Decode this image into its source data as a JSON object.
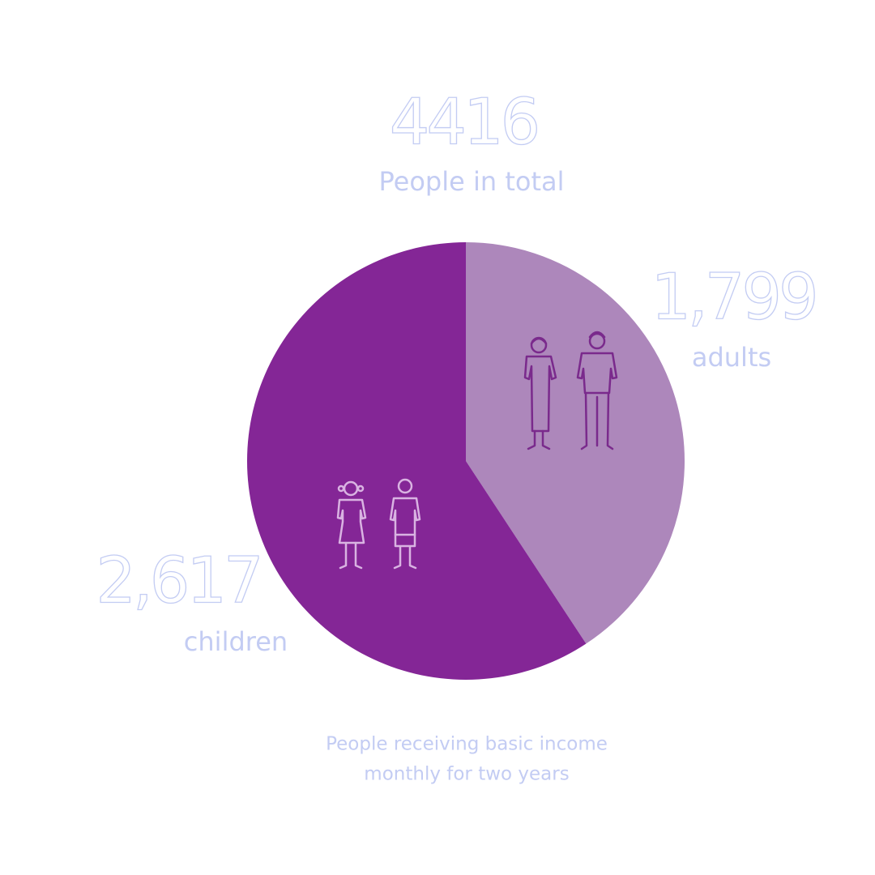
{
  "chart_data": {
    "type": "pie",
    "total": 4416,
    "total_label": "People in total",
    "categories": [
      "adults",
      "children"
    ],
    "values": [
      1799,
      2617
    ],
    "value_labels": [
      "1,799",
      "2,617"
    ],
    "colors": [
      "#ad87bb",
      "#842696"
    ],
    "caption": [
      "People receiving basic income",
      "monthly for two years"
    ]
  }
}
